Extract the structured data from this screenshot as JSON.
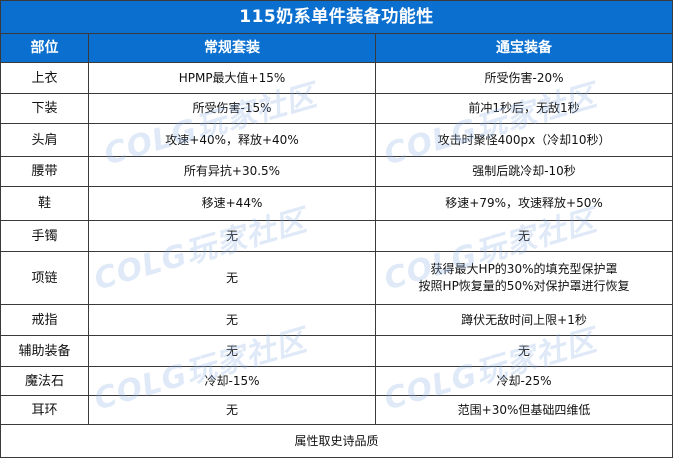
{
  "title": "115奶系单件装备功能性",
  "headers": {
    "slot": "部位",
    "standard": "常规套装",
    "tongbao": "通宝装备"
  },
  "rows": [
    {
      "slot": "上衣",
      "standard": "HPMP最大值+15%",
      "tongbao": [
        "所受伤害-20%"
      ]
    },
    {
      "slot": "下装",
      "standard": "所受伤害-15%",
      "tongbao": [
        "前冲1秒后，无敌1秒"
      ]
    },
    {
      "slot": "头肩",
      "standard": "攻速+40%，释放+40%",
      "tongbao": [
        "攻击时聚怪400px（冷却10秒）"
      ]
    },
    {
      "slot": "腰带",
      "standard": "所有异抗+30.5%",
      "tongbao": [
        "强制后跳冷却-10秒"
      ]
    },
    {
      "slot": "鞋",
      "standard": "移速+44%",
      "tongbao": [
        "移速+79%，攻速释放+50%"
      ]
    },
    {
      "slot": "手镯",
      "standard": "无",
      "tongbao": [
        "无"
      ]
    },
    {
      "slot": "项链",
      "standard": "无",
      "tongbao": [
        "获得最大HP的30%的填充型保护罩",
        "按照HP恢复量的50%对保护罩进行恢复"
      ]
    },
    {
      "slot": "戒指",
      "standard": "无",
      "tongbao": [
        "蹲伏无敌时间上限+1秒"
      ]
    },
    {
      "slot": "辅助装备",
      "standard": "无",
      "tongbao": [
        "无"
      ]
    },
    {
      "slot": "魔法石",
      "standard": "冷却-15%",
      "tongbao": [
        "冷却-25%"
      ]
    },
    {
      "slot": "耳环",
      "standard": "无",
      "tongbao": [
        "范围+30%但基础四维低"
      ]
    }
  ],
  "footer": "属性取史诗品质",
  "watermark": "COLG玩家社区",
  "colors": {
    "header_bg": "#0a6fcf",
    "header_text": "#ffffff",
    "border": "#3a3a3a"
  }
}
